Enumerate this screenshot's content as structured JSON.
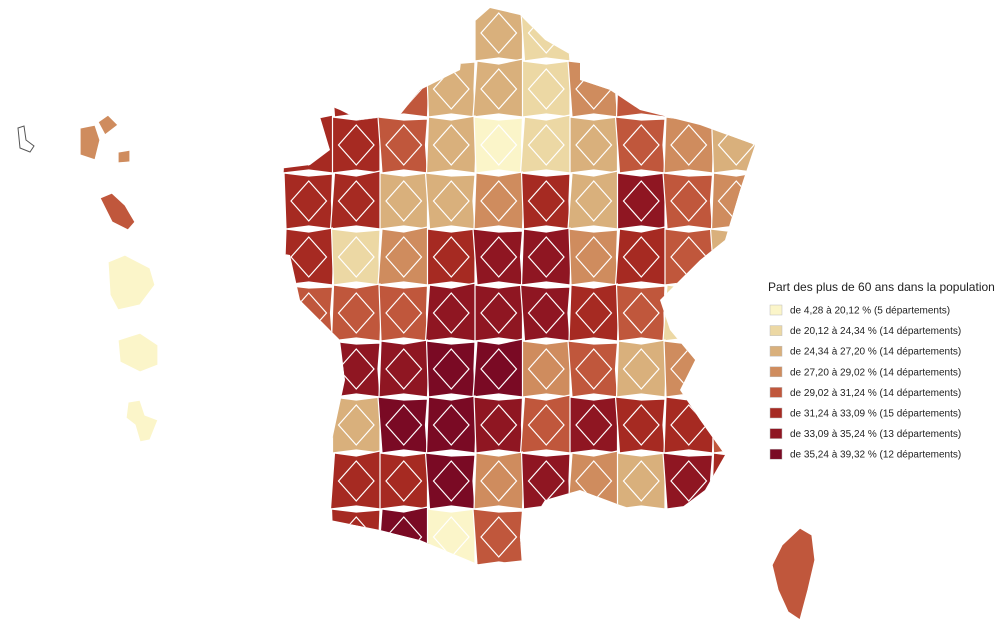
{
  "legend": {
    "title": "Part des plus de 60 ans dans la population",
    "items": [
      {
        "label": "de 4,28 à 20,12 % (5 départements)",
        "color": "#fbf5c9"
      },
      {
        "label": "de 20,12 à 24,34 % (14 départements)",
        "color": "#ecd8a4"
      },
      {
        "label": "de 24,34 à 27,20 % (14 départements)",
        "color": "#d9b07c"
      },
      {
        "label": "de 27,20 à 29,02 % (14 départements)",
        "color": "#cf8c5e"
      },
      {
        "label": "de 29,02 à 31,24 % (14 départements)",
        "color": "#c0573c"
      },
      {
        "label": "de 31,24 à 33,09 % (15 départements)",
        "color": "#a62a22"
      },
      {
        "label": "de 33,09 à 35,24 % (13 départements)",
        "color": "#8f1622"
      },
      {
        "label": "de 35,24 à 39,32 % (12 départements)",
        "color": "#7a0a24"
      }
    ]
  }
}
